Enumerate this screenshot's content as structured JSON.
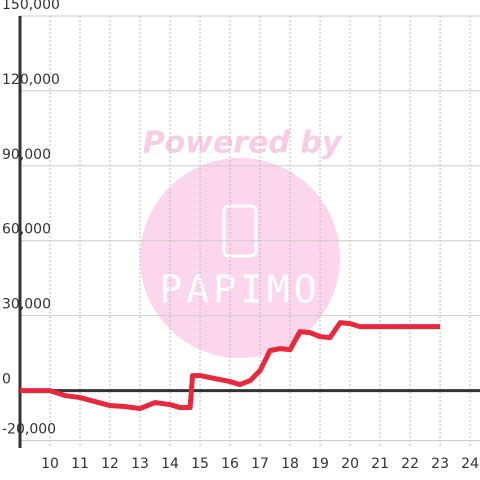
{
  "chart_data": {
    "type": "line",
    "watermark": [
      "Powered by",
      "PAPIMO"
    ],
    "x": [
      9,
      10,
      10.5,
      11,
      11.5,
      12,
      12.5,
      13,
      13.5,
      14,
      14.33,
      14.67,
      14.75,
      15,
      15.5,
      16,
      16.33,
      16.67,
      17,
      17.33,
      17.67,
      18,
      18.33,
      18.67,
      19,
      19.33,
      19.67,
      20,
      20.33,
      21,
      23
    ],
    "series": [
      {
        "color": "#e8283c",
        "values": [
          0,
          0,
          -2000,
          -2800,
          -4400,
          -6000,
          -6400,
          -7200,
          -4800,
          -5600,
          -6800,
          -6800,
          6000,
          6000,
          4800,
          3600,
          2400,
          4000,
          8000,
          16000,
          16800,
          16400,
          23600,
          23200,
          21600,
          21200,
          27200,
          26800,
          25600,
          25600,
          25600
        ]
      }
    ],
    "xlim": [
      9,
      24.33
    ],
    "xticks": [
      10,
      11,
      12,
      13,
      14,
      15,
      16,
      17,
      18,
      19,
      20,
      21,
      22,
      23,
      24
    ],
    "ylim": [
      -23000,
      150000
    ],
    "yticks": [
      {
        "value": -20000,
        "label": "-20,000"
      },
      0,
      {
        "value": 30000,
        "label": "30,000"
      },
      {
        "value": 60000,
        "label": "60,000"
      },
      {
        "value": 90000,
        "label": "90,000"
      },
      {
        "value": 120000,
        "label": "120,000"
      },
      {
        "value": 150000,
        "label": "150,000"
      }
    ],
    "grid": true
  }
}
